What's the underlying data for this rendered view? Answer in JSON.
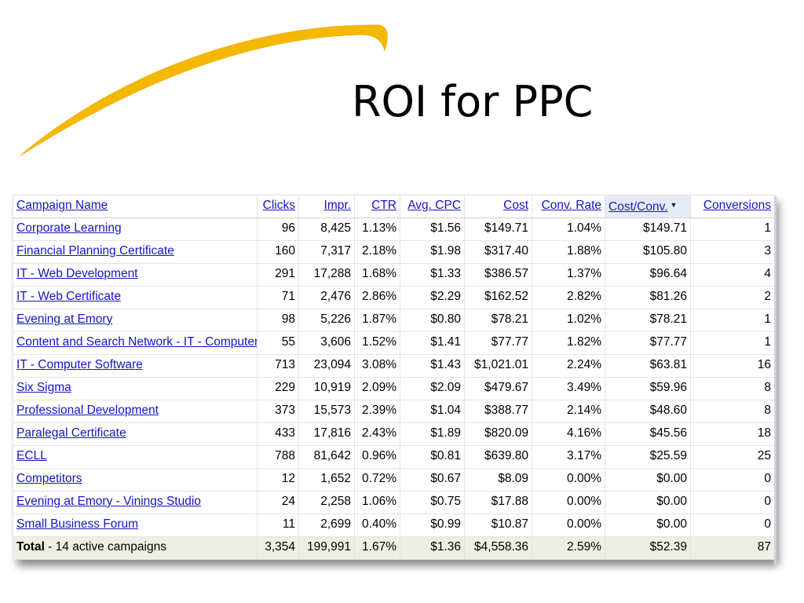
{
  "slide": {
    "title": "ROI for PPC",
    "swoosh_color": "#f5b800"
  },
  "table": {
    "link_color": "#1515c2",
    "headers": {
      "campaign_name": "Campaign Name",
      "clicks": "Clicks",
      "impr": "Impr.",
      "ctr": "CTR",
      "avg_cpc": "Avg. CPC",
      "cost": "Cost",
      "conv_rate": "Conv. Rate",
      "cost_per_conv": "Cost/Conv.",
      "cost_per_conv_sort": "▼",
      "conversions": "Conversions"
    },
    "rows": [
      {
        "name": "Corporate Learning",
        "clicks": "96",
        "impr": "8,425",
        "ctr": "1.13%",
        "avg_cpc": "$1.56",
        "cost": "$149.71",
        "conv_rate": "1.04%",
        "cost_per_conv": "$149.71",
        "conversions": "1"
      },
      {
        "name": "Financial Planning Certificate",
        "clicks": "160",
        "impr": "7,317",
        "ctr": "2.18%",
        "avg_cpc": "$1.98",
        "cost": "$317.40",
        "conv_rate": "1.88%",
        "cost_per_conv": "$105.80",
        "conversions": "3"
      },
      {
        "name": "IT - Web Development",
        "clicks": "291",
        "impr": "17,288",
        "ctr": "1.68%",
        "avg_cpc": "$1.33",
        "cost": "$386.57",
        "conv_rate": "1.37%",
        "cost_per_conv": "$96.64",
        "conversions": "4"
      },
      {
        "name": "IT - Web Certificate",
        "clicks": "71",
        "impr": "2,476",
        "ctr": "2.86%",
        "avg_cpc": "$2.29",
        "cost": "$162.52",
        "conv_rate": "2.82%",
        "cost_per_conv": "$81.26",
        "conversions": "2"
      },
      {
        "name": "Evening at Emory",
        "clicks": "98",
        "impr": "5,226",
        "ctr": "1.87%",
        "avg_cpc": "$0.80",
        "cost": "$78.21",
        "conv_rate": "1.02%",
        "cost_per_conv": "$78.21",
        "conversions": "1"
      },
      {
        "name": "Content and Search Network - IT - Computer Software",
        "clicks": "55",
        "impr": "3,606",
        "ctr": "1.52%",
        "avg_cpc": "$1.41",
        "cost": "$77.77",
        "conv_rate": "1.82%",
        "cost_per_conv": "$77.77",
        "conversions": "1"
      },
      {
        "name": "IT - Computer Software",
        "clicks": "713",
        "impr": "23,094",
        "ctr": "3.08%",
        "avg_cpc": "$1.43",
        "cost": "$1,021.01",
        "conv_rate": "2.24%",
        "cost_per_conv": "$63.81",
        "conversions": "16"
      },
      {
        "name": "Six Sigma",
        "clicks": "229",
        "impr": "10,919",
        "ctr": "2.09%",
        "avg_cpc": "$2.09",
        "cost": "$479.67",
        "conv_rate": "3.49%",
        "cost_per_conv": "$59.96",
        "conversions": "8"
      },
      {
        "name": "Professional Development",
        "clicks": "373",
        "impr": "15,573",
        "ctr": "2.39%",
        "avg_cpc": "$1.04",
        "cost": "$388.77",
        "conv_rate": "2.14%",
        "cost_per_conv": "$48.60",
        "conversions": "8"
      },
      {
        "name": "Paralegal Certificate",
        "clicks": "433",
        "impr": "17,816",
        "ctr": "2.43%",
        "avg_cpc": "$1.89",
        "cost": "$820.09",
        "conv_rate": "4.16%",
        "cost_per_conv": "$45.56",
        "conversions": "18"
      },
      {
        "name": "ECLL",
        "clicks": "788",
        "impr": "81,642",
        "ctr": "0.96%",
        "avg_cpc": "$0.81",
        "cost": "$639.80",
        "conv_rate": "3.17%",
        "cost_per_conv": "$25.59",
        "conversions": "25"
      },
      {
        "name": "Competitors",
        "clicks": "12",
        "impr": "1,652",
        "ctr": "0.72%",
        "avg_cpc": "$0.67",
        "cost": "$8.09",
        "conv_rate": "0.00%",
        "cost_per_conv": "$0.00",
        "conversions": "0"
      },
      {
        "name": "Evening at Emory - Vinings Studio",
        "clicks": "24",
        "impr": "2,258",
        "ctr": "1.06%",
        "avg_cpc": "$0.75",
        "cost": "$17.88",
        "conv_rate": "0.00%",
        "cost_per_conv": "$0.00",
        "conversions": "0"
      },
      {
        "name": "Small Business Forum",
        "clicks": "11",
        "impr": "2,699",
        "ctr": "0.40%",
        "avg_cpc": "$0.99",
        "cost": "$10.87",
        "conv_rate": "0.00%",
        "cost_per_conv": "$0.00",
        "conversions": "0"
      }
    ],
    "total": {
      "label": "Total",
      "suffix": " - 14 active campaigns",
      "clicks": "3,354",
      "impr": "199,991",
      "ctr": "1.67%",
      "avg_cpc": "$1.36",
      "cost": "$4,558.36",
      "conv_rate": "2.59%",
      "cost_per_conv": "$52.39",
      "conversions": "87"
    }
  }
}
